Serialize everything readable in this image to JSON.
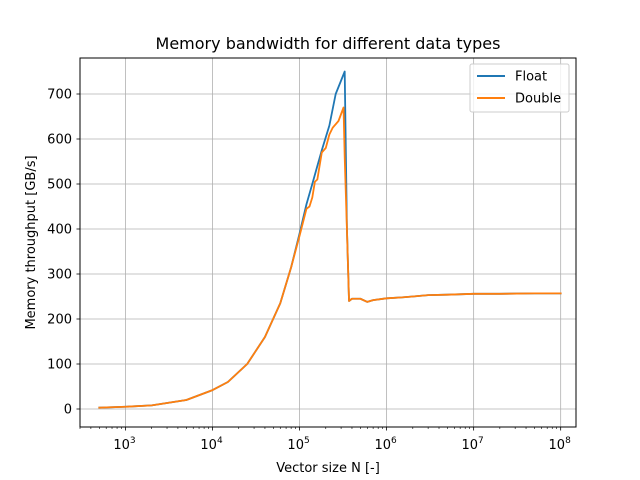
{
  "chart_data": {
    "type": "line",
    "title": "Memory bandwidth for different data types",
    "xlabel": "Vector size N [-]",
    "ylabel": "Memory throughput [GB/s]",
    "xscale": "log",
    "xlim": [
      300,
      150000000
    ],
    "ylim": [
      -40,
      780
    ],
    "grid": true,
    "legend_position": "top-right",
    "xticks": [
      {
        "value": 1000,
        "base": "10",
        "exp": "3"
      },
      {
        "value": 10000,
        "base": "10",
        "exp": "4"
      },
      {
        "value": 100000,
        "base": "10",
        "exp": "5"
      },
      {
        "value": 1000000,
        "base": "10",
        "exp": "6"
      },
      {
        "value": 10000000,
        "base": "10",
        "exp": "7"
      },
      {
        "value": 100000000,
        "base": "10",
        "exp": "8"
      }
    ],
    "yticks": [
      {
        "value": 0,
        "label": "0"
      },
      {
        "value": 100,
        "label": "100"
      },
      {
        "value": 200,
        "label": "200"
      },
      {
        "value": 300,
        "label": "300"
      },
      {
        "value": 400,
        "label": "400"
      },
      {
        "value": 500,
        "label": "500"
      },
      {
        "value": 600,
        "label": "600"
      },
      {
        "value": 700,
        "label": "700"
      }
    ],
    "series": [
      {
        "name": "Float",
        "color": "#1f77b4",
        "x": [
          500,
          1000,
          2000,
          5000,
          10000,
          15000,
          25000,
          40000,
          60000,
          80000,
          100000,
          120000,
          140000,
          160000,
          180000,
          220000,
          260000,
          300000,
          330000,
          350000,
          370000,
          400000,
          450000,
          500000,
          600000,
          700000,
          1000000,
          1500000,
          2000000,
          3000000,
          5000000,
          10000000,
          20000000,
          50000000,
          100000000
        ],
        "y": [
          3,
          5,
          8,
          20,
          42,
          60,
          100,
          160,
          235,
          315,
          390,
          455,
          500,
          540,
          575,
          630,
          700,
          730,
          750,
          400,
          240,
          245,
          245,
          245,
          238,
          242,
          246,
          248,
          250,
          253,
          254,
          256,
          256,
          257,
          257
        ]
      },
      {
        "name": "Double",
        "color": "#ff7f0e",
        "x": [
          500,
          1000,
          2000,
          5000,
          10000,
          15000,
          25000,
          40000,
          60000,
          80000,
          100000,
          120000,
          130000,
          140000,
          150000,
          160000,
          180000,
          200000,
          220000,
          240000,
          280000,
          320000,
          330000,
          350000,
          370000,
          400000,
          450000,
          500000,
          600000,
          700000,
          1000000,
          1500000,
          2000000,
          3000000,
          5000000,
          10000000,
          20000000,
          50000000,
          100000000
        ],
        "y": [
          3,
          5,
          8,
          20,
          42,
          60,
          100,
          160,
          235,
          315,
          385,
          445,
          450,
          470,
          505,
          510,
          570,
          580,
          610,
          625,
          640,
          670,
          560,
          400,
          240,
          245,
          245,
          245,
          238,
          242,
          246,
          248,
          250,
          253,
          254,
          256,
          256,
          257,
          257
        ]
      }
    ]
  }
}
